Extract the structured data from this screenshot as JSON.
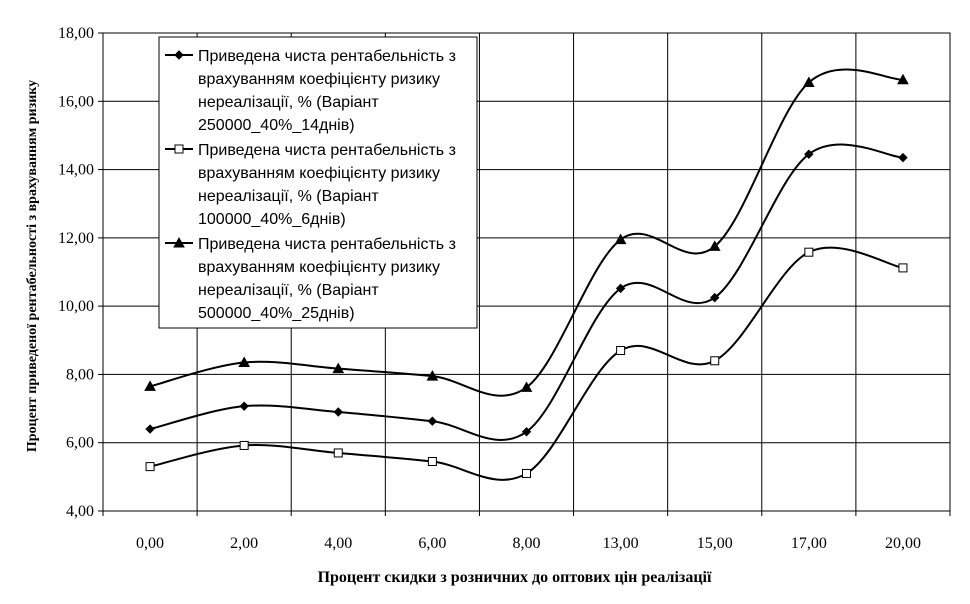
{
  "chart_data": {
    "type": "line",
    "categories": [
      "0,00",
      "2,00",
      "4,00",
      "6,00",
      "8,00",
      "13,00",
      "15,00",
      "17,00",
      "20,00"
    ],
    "series": [
      {
        "name": "Приведена чиста рентабельність з врахуванням коефіцієнту ризику нереалізації, % (Варіант 250000_40%_14днів)",
        "legend_lines": [
          "Приведена чиста рентабельність з",
          "врахуванням коефіцієнту ризику",
          "нереалізації, % (Варіант",
          "250000_40%_14днів)"
        ],
        "marker": "diamond",
        "values": [
          6.4,
          7.07,
          6.9,
          6.63,
          6.32,
          10.52,
          10.25,
          14.45,
          14.35
        ]
      },
      {
        "name": "Приведена чиста рентабельність з врахуванням коефіцієнту ризику нереалізації, % (Варіант 100000_40%_6днів)",
        "legend_lines": [
          "Приведена чиста рентабельність з",
          "врахуванням коефіцієнту ризику",
          "нереалізації, % (Варіант",
          "100000_40%_6днів)"
        ],
        "marker": "square-open",
        "values": [
          5.3,
          5.92,
          5.7,
          5.45,
          5.1,
          8.7,
          8.4,
          11.58,
          11.12
        ]
      },
      {
        "name": "Приведена чиста рентабельність з врахуванням коефіцієнту ризику нереалізації, % (Варіант 500000_40%_25днів)",
        "legend_lines": [
          "Приведена чиста рентабельність з",
          "врахуванням коефіцієнту ризику",
          "нереалізації, % (Варіант",
          "500000_40%_25днів)"
        ],
        "marker": "triangle",
        "values": [
          7.65,
          8.35,
          8.17,
          7.95,
          7.62,
          11.95,
          11.75,
          16.55,
          16.63
        ]
      }
    ],
    "xlabel": "Процент скидки з розничних до оптових цін реалізації",
    "ylabel": "Процент приведеної рентабельності з врахуванням ризику",
    "ylim": [
      4,
      18
    ],
    "yticks": [
      "4,00",
      "6,00",
      "8,00",
      "10,00",
      "12,00",
      "14,00",
      "16,00",
      "18,00"
    ],
    "grid": true,
    "legend_position": "top-left"
  }
}
